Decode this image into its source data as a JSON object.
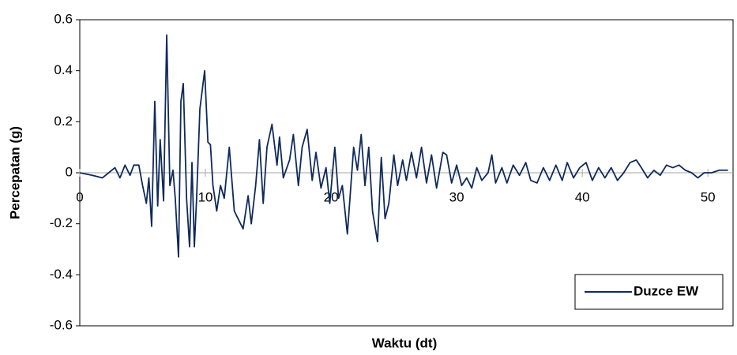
{
  "chart_data": {
    "type": "line",
    "xlabel": "Waktu (dt)",
    "ylabel": "Percepatan (g)",
    "x": [
      0,
      1,
      1.8,
      2.3,
      2.8,
      3.2,
      3.6,
      4.0,
      4.3,
      4.7,
      5.0,
      5.3,
      5.5,
      5.72,
      5.97,
      6.2,
      6.4,
      6.67,
      6.92,
      7.17,
      7.42,
      7.6,
      7.86,
      8.05,
      8.24,
      8.5,
      8.74,
      8.93,
      9.12,
      9.3,
      9.56,
      9.94,
      10.2,
      10.4,
      10.6,
      10.9,
      11.2,
      11.5,
      11.9,
      12.3,
      12.6,
      13.0,
      13.4,
      13.65,
      14.0,
      14.3,
      14.6,
      14.9,
      15.3,
      15.7,
      15.9,
      16.2,
      16.7,
      17.0,
      17.4,
      17.7,
      18.1,
      18.5,
      18.8,
      19.2,
      19.6,
      19.9,
      20.3,
      20.6,
      20.9,
      21.3,
      21.8,
      22.1,
      22.4,
      22.7,
      23.0,
      23.3,
      23.7,
      24.0,
      24.3,
      24.6,
      25.0,
      25.3,
      25.7,
      26.0,
      26.4,
      26.8,
      27.2,
      27.6,
      28.0,
      28.4,
      28.9,
      29.2,
      29.6,
      30.0,
      30.4,
      30.8,
      31.2,
      31.6,
      32.0,
      32.5,
      32.8,
      33.1,
      33.6,
      34.0,
      34.5,
      35.0,
      35.5,
      35.9,
      36.4,
      36.9,
      37.4,
      37.9,
      38.4,
      38.8,
      39.3,
      39.8,
      40.3,
      40.8,
      41.3,
      41.8,
      42.3,
      42.8,
      43.3,
      43.8,
      44.3,
      44.7,
      45.2,
      45.7,
      46.2,
      46.7,
      47.2,
      47.7,
      48.2,
      48.7,
      49.2,
      49.7,
      50.3,
      50.9,
      51.6
    ],
    "series": [
      {
        "name": "Duzce EW",
        "color": "#0f2a5c",
        "values": [
          0,
          -0.01,
          -0.02,
          0,
          0.02,
          -0.02,
          0.03,
          -0.01,
          0.03,
          0.03,
          -0.05,
          -0.12,
          -0.02,
          -0.21,
          0.28,
          -0.13,
          0.13,
          -0.11,
          0.54,
          -0.05,
          0.01,
          -0.1,
          -0.33,
          0.28,
          0.35,
          -0.1,
          -0.29,
          0.04,
          -0.29,
          -0.1,
          0.25,
          0.4,
          0.12,
          0.11,
          -0.05,
          -0.15,
          -0.05,
          -0.1,
          0.1,
          -0.15,
          -0.18,
          -0.22,
          -0.09,
          -0.2,
          -0.05,
          0.13,
          -0.12,
          0.1,
          0.19,
          0.03,
          0.14,
          -0.02,
          0.05,
          0.15,
          -0.05,
          0.1,
          0.17,
          -0.03,
          0.08,
          -0.06,
          0.02,
          -0.12,
          0.1,
          -0.1,
          -0.05,
          -0.24,
          0.1,
          0.01,
          0.15,
          -0.05,
          0.1,
          -0.15,
          -0.27,
          0.06,
          -0.18,
          -0.12,
          0.07,
          -0.05,
          0.05,
          -0.03,
          0.08,
          -0.02,
          0.1,
          -0.04,
          0.07,
          -0.06,
          0.08,
          0.07,
          -0.04,
          0.03,
          -0.05,
          -0.02,
          -0.06,
          0.02,
          -0.03,
          0,
          0.07,
          -0.04,
          0.02,
          -0.04,
          0.03,
          -0.01,
          0.04,
          -0.03,
          -0.04,
          0.02,
          -0.03,
          0.03,
          -0.03,
          0.04,
          -0.02,
          0.02,
          0.04,
          -0.03,
          0.02,
          -0.02,
          0.02,
          -0.03,
          0,
          0.04,
          0.05,
          0.02,
          -0.02,
          0.01,
          -0.01,
          0.03,
          0.02,
          0.03,
          0.01,
          0,
          -0.02,
          0,
          0,
          0.01,
          0.01
        ]
      }
    ],
    "xlim": [
      0,
      52
    ],
    "xticks": [
      0,
      10,
      20,
      30,
      40,
      50
    ],
    "ylim": [
      -0.6,
      0.6
    ],
    "yticks": [
      -0.6,
      -0.4,
      -0.2,
      0,
      0.2,
      0.4,
      0.6
    ],
    "legend": "lower right"
  }
}
